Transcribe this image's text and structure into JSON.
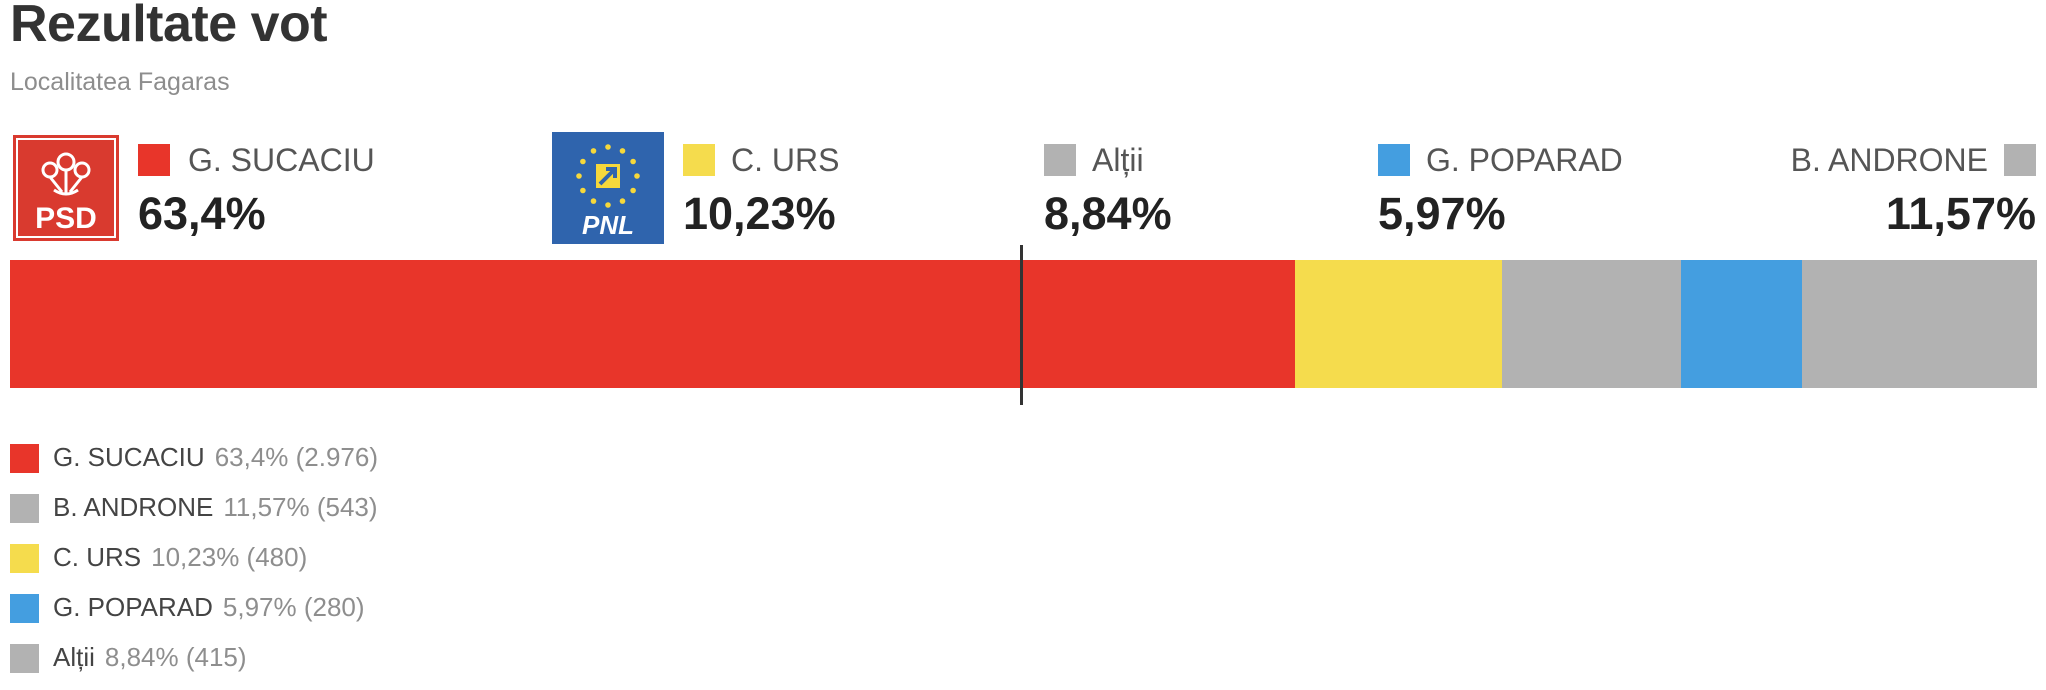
{
  "title": "Rezultate vot",
  "subtitle": "Localitatea Fagaras",
  "logos": {
    "psd": {
      "text": "PSD",
      "color": "#e8352a"
    },
    "pnl": {
      "text": "PNL",
      "color": "#2f64ad",
      "star_color": "#f6d83b",
      "arrow_color": "#f6d83b"
    }
  },
  "header_candidates": [
    {
      "name": "G. SUCACIU",
      "pct": "63,4%",
      "color": "#e8352a"
    },
    {
      "name": "C. URS",
      "pct": "10,23%",
      "color": "#f5dc4d"
    },
    {
      "name": "Alții",
      "pct": "8,84%",
      "color": "#b2b2b2"
    },
    {
      "name": "G. POPARAD",
      "pct": "5,97%",
      "color": "#449ee0"
    },
    {
      "name": "B. ANDRONE",
      "pct": "11,57%",
      "color": "#b2b2b2"
    }
  ],
  "chart_data": {
    "type": "bar",
    "orientation": "horizontal-stacked",
    "title": "Rezultate vot",
    "subtitle": "Localitatea Fagaras",
    "threshold_pct": 50,
    "segments": [
      {
        "name": "G. SUCACIU",
        "value": 63.4,
        "votes": 2976,
        "color": "#e8352a"
      },
      {
        "name": "C. URS",
        "value": 10.23,
        "votes": 480,
        "color": "#f5dc4d"
      },
      {
        "name": "Alții",
        "value": 8.84,
        "votes": 415,
        "color": "#b2b2b2"
      },
      {
        "name": "G. POPARAD",
        "value": 5.97,
        "votes": 280,
        "color": "#449ee0"
      },
      {
        "name": "B. ANDRONE",
        "value": 11.57,
        "votes": 543,
        "color": "#b2b2b2"
      }
    ]
  },
  "legend": [
    {
      "name": "G. SUCACIU",
      "value": "63,4% (2.976)",
      "color": "#e8352a"
    },
    {
      "name": "B. ANDRONE",
      "value": "11,57% (543)",
      "color": "#b2b2b2"
    },
    {
      "name": "C. URS",
      "value": "10,23% (480)",
      "color": "#f5dc4d"
    },
    {
      "name": "G. POPARAD",
      "value": "5,97% (280)",
      "color": "#449ee0"
    },
    {
      "name": "Alții",
      "value": "8,84% (415)",
      "color": "#b2b2b2"
    }
  ]
}
